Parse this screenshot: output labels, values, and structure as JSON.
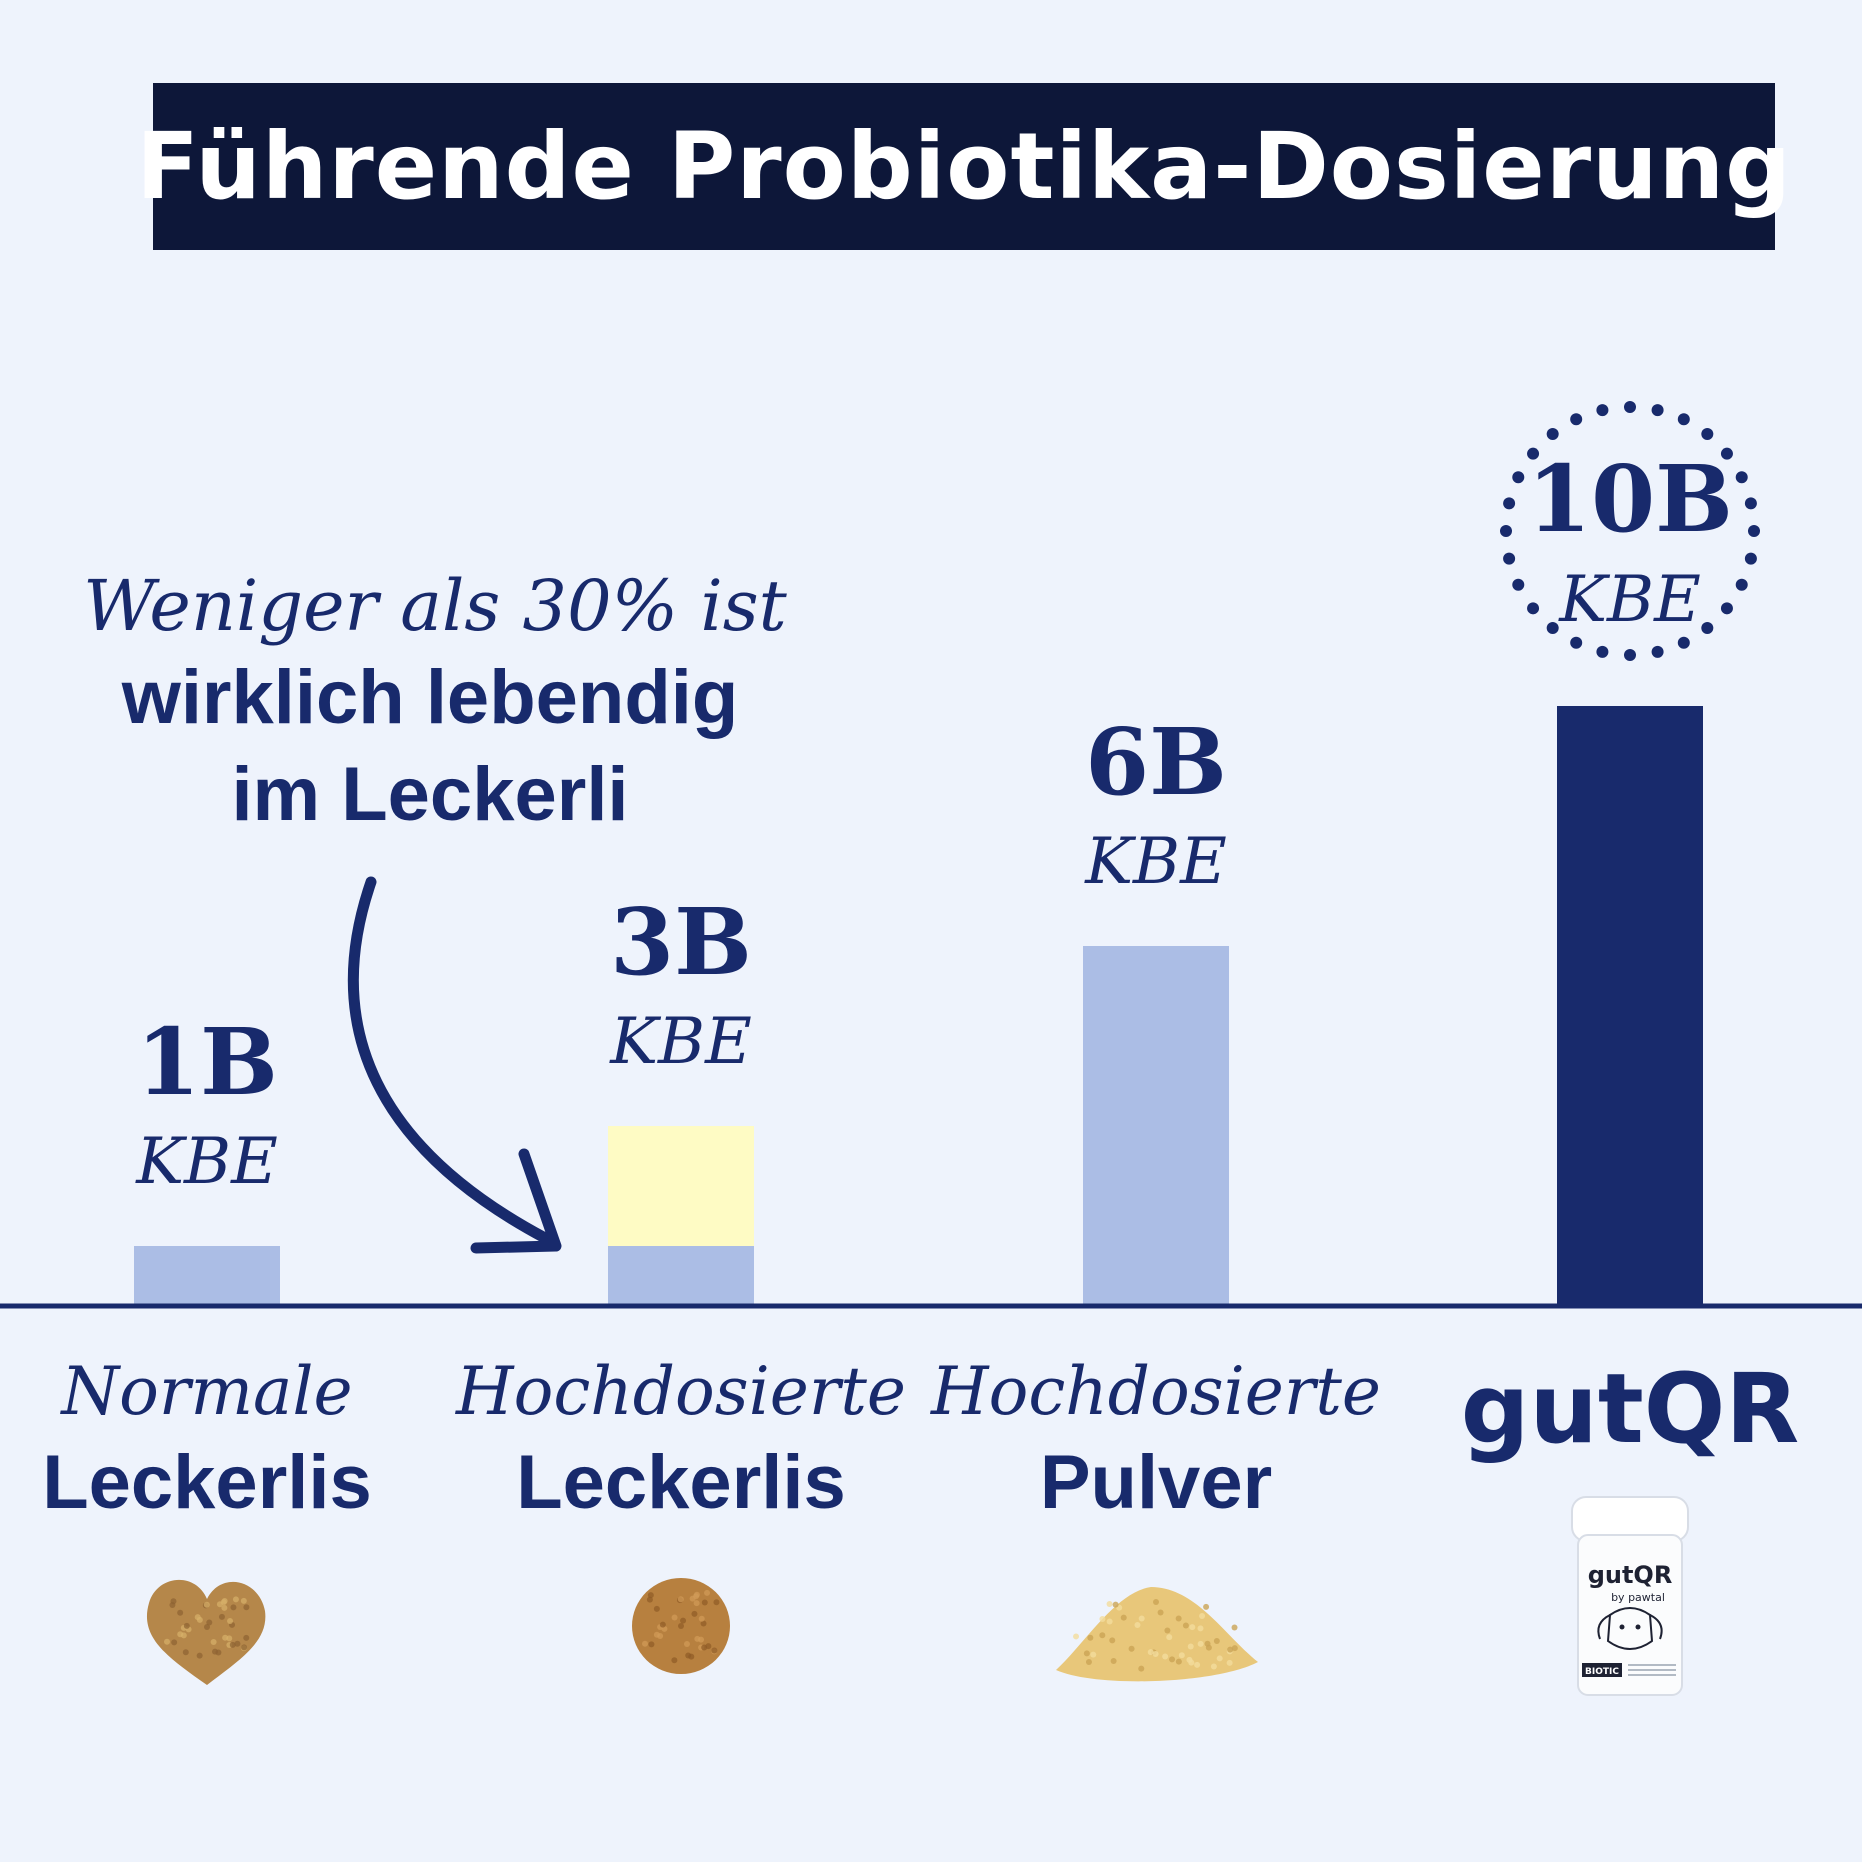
{
  "colors": {
    "background": "#eef3fc",
    "title_bg": "#0d1739",
    "title_text": "#ffffff",
    "navy": "#182a6c",
    "bar_light": "#abbde5",
    "bar_live_fraction": "#fefbc4",
    "bar_brand": "#182a6c"
  },
  "chart_data": {
    "type": "bar",
    "title": "Führende Probiotika-Dosierung",
    "unit": "KBE",
    "ylim": [
      0,
      10
    ],
    "grid": false,
    "legend": "none",
    "categories": [
      {
        "top": "Normale",
        "bottom": "Leckerlis",
        "value": 1,
        "value_label": "1B",
        "unit_label": "KBE",
        "live_value": null,
        "highlight": false,
        "product_icon": "heart-treat-icon"
      },
      {
        "top": "Hochdosierte",
        "bottom": "Leckerlis",
        "value": 3,
        "value_label": "3B",
        "unit_label": "KBE",
        "live_value": 1,
        "highlight": false,
        "product_icon": "round-treat-icon"
      },
      {
        "top": "Hochdosierte",
        "bottom": "Pulver",
        "value": 6,
        "value_label": "6B",
        "unit_label": "KBE",
        "live_value": null,
        "highlight": false,
        "product_icon": "powder-pile-icon"
      },
      {
        "top": "",
        "bottom": "gutQR",
        "value": 10,
        "value_label": "10B",
        "unit_label": "KBE",
        "live_value": null,
        "highlight": true,
        "product_icon": "gutqr-jar-icon"
      }
    ],
    "annotation": {
      "line1": "Weniger als 30% ist",
      "line2": "wirklich lebendig",
      "line3": "im Leckerli",
      "target_category_index": 1,
      "icon": "curved-arrow-icon"
    }
  },
  "jar_label": {
    "brand": "gutQR",
    "sub": "by pawtal",
    "tag": "BIOTIC"
  }
}
